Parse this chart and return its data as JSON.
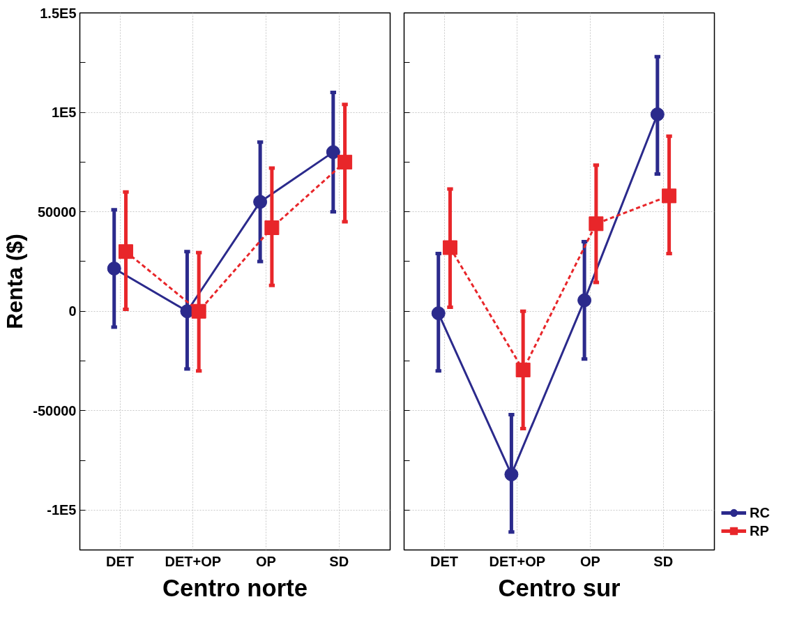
{
  "chart_data": [
    {
      "type": "line",
      "xlabel": "Centro norte",
      "ylabel": "Renta ($)",
      "categories": [
        "DET",
        "DET+OP",
        "OP",
        "SD"
      ],
      "ylim": [
        -120000,
        150000
      ],
      "yticks": [
        {
          "value": -100000,
          "label": "-1E5"
        },
        {
          "value": -75000,
          "label": null
        },
        -50000,
        {
          "value": -25000,
          "label": null
        },
        0,
        {
          "value": 25000,
          "label": null
        },
        50000,
        {
          "value": 75000,
          "label": null
        },
        {
          "value": 100000,
          "label": "1E5"
        },
        {
          "value": 125000,
          "label": null
        },
        {
          "value": 150000,
          "label": "1.5E5"
        }
      ],
      "grid": true,
      "legend": false,
      "series": [
        {
          "color": "#2b2a8c",
          "marker": "circle",
          "line_style": "solid",
          "values": [
            21500,
            0,
            55000,
            80000
          ],
          "errors": [
            [
              -8000,
              51000
            ],
            [
              -29000,
              30000
            ],
            [
              25000,
              85000
            ],
            [
              50000,
              110000
            ]
          ]
        },
        {
          "color": "#e8262a",
          "marker": "square",
          "line_style": "dashed",
          "values": [
            30000,
            0,
            42000,
            75000
          ],
          "errors": [
            [
              1000,
              60000
            ],
            [
              -30000,
              29500
            ],
            [
              13000,
              72000
            ],
            [
              45000,
              104000
            ]
          ]
        }
      ]
    },
    {
      "type": "line",
      "xlabel": "Centro sur",
      "categories": [
        "DET",
        "DET+OP",
        "OP",
        "SD"
      ],
      "ylim": [
        -120000,
        150000
      ],
      "tick_labels": "x",
      "yticks": [
        -100000,
        -75000,
        -50000,
        -25000,
        0,
        25000,
        50000,
        75000,
        100000,
        125000,
        150000
      ],
      "grid": true,
      "legend": "bottom right",
      "series": [
        {
          "name": "RC",
          "color": "#2b2a8c",
          "marker": "circle",
          "line_style": "solid",
          "values": [
            -1000,
            -82000,
            5500,
            99000
          ],
          "errors": [
            [
              -30000,
              29000
            ],
            [
              -111000,
              -52000
            ],
            [
              -24000,
              35000
            ],
            [
              69000,
              128000
            ]
          ]
        },
        {
          "name": "RP",
          "color": "#e8262a",
          "marker": "square",
          "line_style": "dashed",
          "values": [
            32000,
            -29500,
            44000,
            58000
          ],
          "errors": [
            [
              2000,
              61500
            ],
            [
              -59000,
              0
            ],
            [
              14500,
              73500
            ],
            [
              29000,
              88000
            ]
          ]
        }
      ]
    }
  ]
}
